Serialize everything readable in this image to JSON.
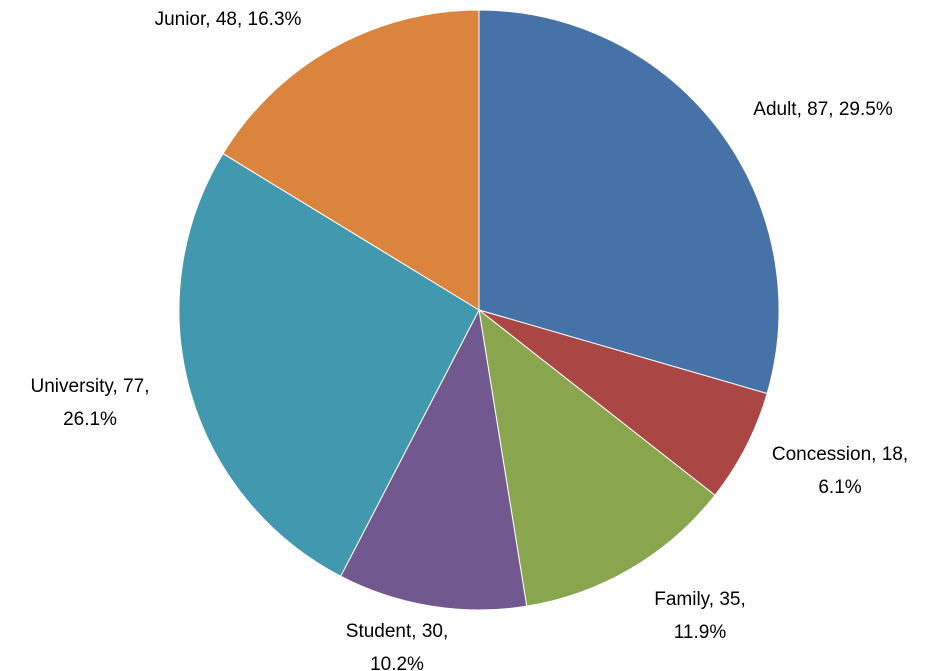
{
  "chart_data": {
    "type": "pie",
    "values": [
      87,
      18,
      35,
      30,
      77,
      48
    ],
    "value_labels": [
      [
        "Adult, 87, 29.5%"
      ],
      [
        "Concession, 18,",
        "6.1%"
      ],
      [
        "Family, 35,",
        "11.9%"
      ],
      [
        "Student, 30,",
        "10.2%"
      ],
      [
        "University, 77,",
        "26.1%"
      ],
      [
        "Junior, 48, 16.3%"
      ]
    ],
    "colors": [
      "#4672a8",
      "#aa4643",
      "#89a54e",
      "#71588f",
      "#4198af",
      "#db843d"
    ]
  }
}
